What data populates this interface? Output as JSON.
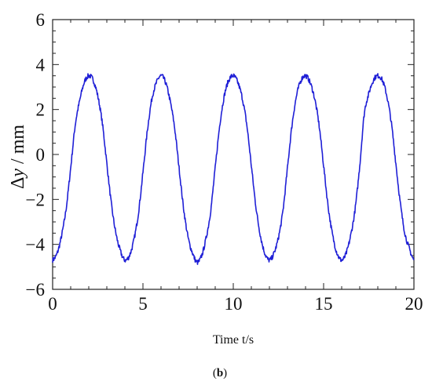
{
  "chart_data": {
    "type": "line",
    "title": "",
    "xlabel": "Time t/s",
    "ylabel": {
      "delta": "Δ",
      "var": "y",
      "unit": " / mm"
    },
    "panel_label": {
      "open": "(",
      "letter": "b",
      "close": ")"
    },
    "xlim": [
      0,
      20
    ],
    "ylim": [
      -6,
      6
    ],
    "xticks": [
      0,
      5,
      10,
      15,
      20
    ],
    "yticks": [
      -6,
      -4,
      -2,
      0,
      2,
      4,
      6
    ],
    "x_tick_labels": [
      "0",
      "5",
      "10",
      "15",
      "20"
    ],
    "y_tick_labels": [
      "−6",
      "−4",
      "−2",
      "0",
      "2",
      "4",
      "6"
    ],
    "grid": false,
    "series": [
      {
        "color": "#1f1fd6",
        "x": [
          0,
          0.25,
          0.5,
          0.75,
          1.0,
          1.25,
          1.5,
          1.75,
          2.0,
          2.25,
          2.5,
          2.75,
          3.0,
          3.25,
          3.5,
          3.75,
          4.0,
          4.25,
          4.5,
          4.75,
          5.0,
          5.25,
          5.5,
          5.75,
          6.0,
          6.25,
          6.5,
          6.75,
          7.0,
          7.25,
          7.5,
          7.75,
          8.0,
          8.25,
          8.5,
          8.75,
          9.0,
          9.25,
          9.5,
          9.75,
          10.0,
          10.25,
          10.5,
          10.75,
          11.0,
          11.25,
          11.5,
          11.75,
          12.0,
          12.25,
          12.5,
          12.75,
          13.0,
          13.25,
          13.5,
          13.75,
          14.0,
          14.25,
          14.5,
          14.75,
          15.0,
          15.25,
          15.5,
          15.75,
          16.0,
          16.25,
          16.5,
          16.75,
          17.0,
          17.25,
          17.5,
          17.75,
          18.0,
          18.25,
          18.5,
          18.75,
          19.0,
          19.25,
          19.5,
          19.75,
          20.0
        ],
        "y": [
          -4.7,
          -4.4,
          -3.6,
          -2.4,
          -0.6,
          1.3,
          2.4,
          3.2,
          3.5,
          3.3,
          2.6,
          1.4,
          -0.4,
          -2.2,
          -3.5,
          -4.3,
          -4.7,
          -4.5,
          -3.8,
          -2.6,
          -0.8,
          1.1,
          2.5,
          3.2,
          3.5,
          3.2,
          2.4,
          1.2,
          -0.6,
          -2.4,
          -3.7,
          -4.4,
          -4.8,
          -4.5,
          -3.7,
          -2.5,
          -0.6,
          1.3,
          2.6,
          3.3,
          3.5,
          3.2,
          2.5,
          1.3,
          -0.5,
          -2.3,
          -3.6,
          -4.4,
          -4.7,
          -4.4,
          -3.7,
          -2.5,
          -0.6,
          1.3,
          2.6,
          3.3,
          3.5,
          3.2,
          2.5,
          1.3,
          -0.5,
          -2.3,
          -3.6,
          -4.4,
          -4.7,
          -4.4,
          -3.6,
          -2.4,
          -0.5,
          1.8,
          2.7,
          3.3,
          3.5,
          3.3,
          2.6,
          1.4,
          -0.4,
          -2.2,
          -3.5,
          -4.2,
          -4.7
        ]
      }
    ]
  }
}
